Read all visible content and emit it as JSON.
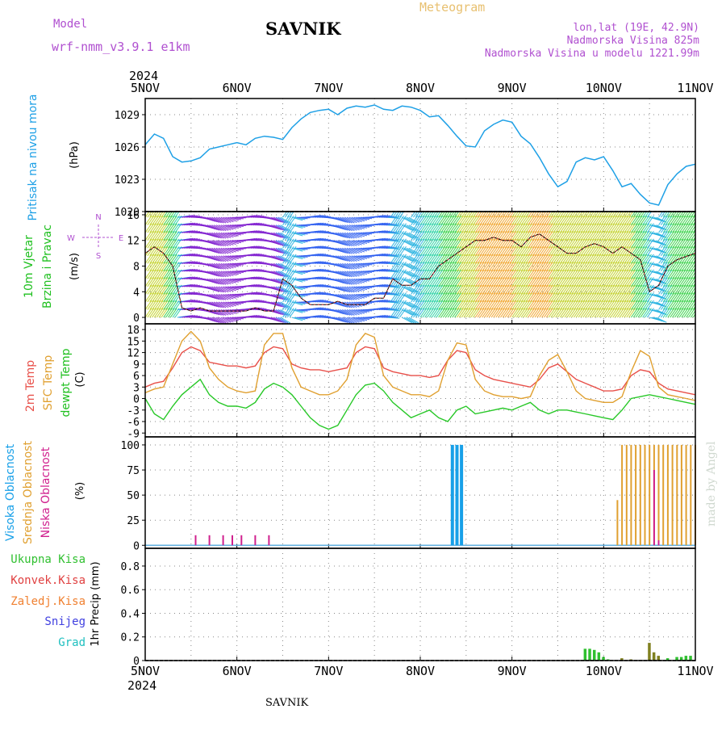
{
  "header": {
    "model_label": "Model",
    "model_name": "wrf-nmm_v3.9.1  e1km",
    "station": "SAVNIK",
    "product": "Meteogram",
    "lonlat": "lon,lat (19E, 42.9N)",
    "elevation": "Nadmorska Visina 825m",
    "model_elevation": "Nadmorska Visina u modelu 1221.99m",
    "year": "2024",
    "footer_station": "SAVNIK",
    "credit": "made by Angel"
  },
  "time_axis": {
    "labels": [
      "5NOV",
      "6NOV",
      "7NOV",
      "8NOV",
      "9NOV",
      "10NOV",
      "11NOV"
    ],
    "start_day": 5,
    "end_day": 11
  },
  "colors": {
    "pressure": "#1ea0e6",
    "temp2m": "#e8504a",
    "sfc": "#e0a030",
    "dew": "#28c828",
    "high_cloud": "#18a0e8",
    "mid_cloud": "#e0a030",
    "low_cloud": "#d0208e",
    "total_precip": "#30c030",
    "conv_precip": "#e04040",
    "frz_precip": "#f08030",
    "snow": "#4040e0",
    "hail": "#20c0c0"
  },
  "chart_data": [
    {
      "type": "line",
      "panel": "pressure",
      "ylabel_1": "Pritisak na nivou mora",
      "ylabel_2": "(hPa)",
      "yticks": [
        1020,
        1023,
        1026,
        1029
      ],
      "ylim": [
        1020,
        1030.5
      ],
      "grid": true,
      "series": [
        {
          "name": "Pritisak na nivou mora",
          "x": [
            5.0,
            5.1,
            5.2,
            5.3,
            5.4,
            5.5,
            5.6,
            5.7,
            5.8,
            5.9,
            6.0,
            6.1,
            6.2,
            6.3,
            6.4,
            6.5,
            6.6,
            6.7,
            6.8,
            6.9,
            7.0,
            7.1,
            7.2,
            7.3,
            7.4,
            7.5,
            7.6,
            7.7,
            7.8,
            7.9,
            8.0,
            8.1,
            8.2,
            8.3,
            8.4,
            8.5,
            8.6,
            8.7,
            8.8,
            8.9,
            9.0,
            9.1,
            9.2,
            9.3,
            9.4,
            9.5,
            9.6,
            9.7,
            9.8,
            9.9,
            10.0,
            10.1,
            10.2,
            10.3,
            10.4,
            10.5,
            10.6,
            10.7,
            10.8,
            10.9,
            11.0
          ],
          "values": [
            1026.2,
            1027.2,
            1026.8,
            1025.1,
            1024.6,
            1024.7,
            1025.0,
            1025.8,
            1026.0,
            1026.2,
            1026.4,
            1026.2,
            1026.8,
            1027.0,
            1026.9,
            1026.7,
            1027.8,
            1028.6,
            1029.2,
            1029.4,
            1029.5,
            1029.0,
            1029.6,
            1029.8,
            1029.7,
            1029.9,
            1029.5,
            1029.4,
            1029.8,
            1029.7,
            1029.4,
            1028.8,
            1028.9,
            1028.0,
            1027.0,
            1026.1,
            1026.0,
            1027.5,
            1028.1,
            1028.5,
            1028.3,
            1027.0,
            1026.3,
            1025.0,
            1023.5,
            1022.3,
            1022.8,
            1024.6,
            1025.0,
            1024.8,
            1025.1,
            1023.8,
            1022.3,
            1022.6,
            1021.6,
            1020.8,
            1020.6,
            1022.5,
            1023.5,
            1024.2,
            1024.4
          ]
        }
      ]
    },
    {
      "type": "line",
      "panel": "wind",
      "ylabel_1": "10m Vjetar",
      "ylabel_2": "Brzina i Pravac",
      "ylabel_3": "(m/s)",
      "compass": {
        "n": "N",
        "s": "S",
        "e": "E",
        "w": "W"
      },
      "yticks": [
        0,
        4,
        8,
        12,
        16
      ],
      "ylim": [
        -1,
        16.5
      ],
      "grid": true,
      "series": [
        {
          "name": "10m Vjetar",
          "x": [
            5.0,
            5.1,
            5.2,
            5.3,
            5.4,
            5.5,
            5.6,
            5.7,
            5.8,
            5.9,
            6.0,
            6.1,
            6.2,
            6.3,
            6.4,
            6.5,
            6.6,
            6.7,
            6.8,
            6.9,
            7.0,
            7.1,
            7.2,
            7.3,
            7.4,
            7.5,
            7.6,
            7.7,
            7.8,
            7.9,
            8.0,
            8.1,
            8.2,
            8.3,
            8.4,
            8.5,
            8.6,
            8.7,
            8.8,
            8.9,
            9.0,
            9.1,
            9.2,
            9.3,
            9.4,
            9.5,
            9.6,
            9.7,
            9.8,
            9.9,
            10.0,
            10.1,
            10.2,
            10.3,
            10.4,
            10.5,
            10.6,
            10.7,
            10.8,
            10.9,
            11.0
          ],
          "values": [
            10,
            11,
            10,
            8,
            1.5,
            1,
            1.5,
            1,
            1,
            1,
            1,
            1,
            1.5,
            1,
            1,
            6,
            5,
            3,
            2,
            2,
            2,
            2.5,
            2,
            2,
            2,
            3,
            3,
            6,
            5,
            5,
            6,
            6,
            8,
            9,
            10,
            11,
            12,
            12,
            12.5,
            12,
            12,
            11,
            12.5,
            13,
            12,
            11,
            10,
            10,
            11,
            11.5,
            11,
            10,
            11,
            10,
            9,
            4,
            5,
            8,
            9,
            9.5,
            10
          ]
        }
      ]
    },
    {
      "type": "line",
      "panel": "temperature",
      "ylabel_1": "2m Temp",
      "ylabel_2": "SFC Temp",
      "ylabel_3": "dewpt Temp",
      "ylabel_4": "(C)",
      "yticks": [
        -9,
        -6,
        -3,
        0,
        3,
        6,
        9,
        12,
        15,
        18
      ],
      "ylim": [
        -10,
        19.5
      ],
      "grid": true,
      "series": [
        {
          "name": "2m Temp",
          "x": [
            5.0,
            5.1,
            5.2,
            5.3,
            5.4,
            5.5,
            5.6,
            5.7,
            5.8,
            5.9,
            6.0,
            6.1,
            6.2,
            6.3,
            6.4,
            6.5,
            6.6,
            6.7,
            6.8,
            6.9,
            7.0,
            7.1,
            7.2,
            7.3,
            7.4,
            7.5,
            7.6,
            7.7,
            7.8,
            7.9,
            8.0,
            8.1,
            8.2,
            8.3,
            8.4,
            8.5,
            8.6,
            8.7,
            8.8,
            8.9,
            9.0,
            9.1,
            9.2,
            9.3,
            9.4,
            9.5,
            9.6,
            9.7,
            9.8,
            9.9,
            10.0,
            10.1,
            10.2,
            10.3,
            10.4,
            10.5,
            10.6,
            10.7,
            10.8,
            10.9,
            11.0
          ],
          "values": [
            3,
            4,
            4.5,
            8,
            12,
            13.5,
            12.5,
            9.5,
            9,
            8.5,
            8.5,
            8,
            8.5,
            12,
            13.5,
            13,
            9,
            8,
            7.5,
            7.5,
            7,
            7.5,
            8,
            12,
            13.5,
            13,
            8,
            7,
            6.5,
            6,
            6,
            5.5,
            6,
            10,
            12.5,
            12,
            7.5,
            6,
            5,
            4.5,
            4,
            3.5,
            3,
            5,
            8,
            9,
            7,
            5,
            4,
            3,
            2,
            2,
            2.5,
            6,
            7.5,
            7,
            4,
            2.5,
            2,
            1.5,
            1
          ]
        },
        {
          "name": "SFC Temp",
          "x": [
            5.0,
            5.1,
            5.2,
            5.3,
            5.4,
            5.5,
            5.6,
            5.7,
            5.8,
            5.9,
            6.0,
            6.1,
            6.2,
            6.3,
            6.4,
            6.5,
            6.6,
            6.7,
            6.8,
            6.9,
            7.0,
            7.1,
            7.2,
            7.3,
            7.4,
            7.5,
            7.6,
            7.7,
            7.8,
            7.9,
            8.0,
            8.1,
            8.2,
            8.3,
            8.4,
            8.5,
            8.6,
            8.7,
            8.8,
            8.9,
            9.0,
            9.1,
            9.2,
            9.3,
            9.4,
            9.5,
            9.6,
            9.7,
            9.8,
            9.9,
            10.0,
            10.1,
            10.2,
            10.3,
            10.4,
            10.5,
            10.6,
            10.7,
            10.8,
            10.9,
            11.0
          ],
          "values": [
            1.5,
            2.5,
            3,
            9,
            15,
            17.5,
            15,
            8,
            5,
            3,
            2,
            1.5,
            2,
            14,
            17,
            17,
            8,
            3,
            2,
            1,
            1,
            2,
            5,
            14,
            17,
            16,
            6,
            3,
            2,
            1,
            1,
            0.5,
            2,
            10,
            14.5,
            14,
            5,
            2,
            1,
            0.5,
            0.5,
            0,
            0.5,
            6,
            10,
            11.5,
            7,
            2,
            0,
            -0.5,
            -1,
            -1,
            0.5,
            7,
            12.5,
            11,
            3,
            1,
            0.5,
            0,
            -0.5
          ]
        },
        {
          "name": "dewpt Temp",
          "x": [
            5.0,
            5.1,
            5.2,
            5.3,
            5.4,
            5.5,
            5.6,
            5.7,
            5.8,
            5.9,
            6.0,
            6.1,
            6.2,
            6.3,
            6.4,
            6.5,
            6.6,
            6.7,
            6.8,
            6.9,
            7.0,
            7.1,
            7.2,
            7.3,
            7.4,
            7.5,
            7.6,
            7.7,
            7.8,
            7.9,
            8.0,
            8.1,
            8.2,
            8.3,
            8.4,
            8.5,
            8.6,
            8.7,
            8.8,
            8.9,
            9.0,
            9.1,
            9.2,
            9.3,
            9.4,
            9.5,
            9.6,
            9.7,
            9.8,
            9.9,
            10.0,
            10.1,
            10.2,
            10.3,
            10.4,
            10.5,
            10.6,
            10.7,
            10.8,
            10.9,
            11.0
          ],
          "values": [
            0,
            -4,
            -5.5,
            -2,
            1,
            3,
            5,
            1,
            -1,
            -2,
            -2,
            -2.5,
            -1,
            2.5,
            4,
            3,
            1,
            -2,
            -5,
            -7,
            -8,
            -7,
            -3,
            1,
            3.5,
            4,
            2,
            -1,
            -3,
            -5,
            -4,
            -3,
            -5,
            -6,
            -3,
            -2,
            -4,
            -3.5,
            -3,
            -2.5,
            -3,
            -2,
            -1,
            -3,
            -4,
            -3,
            -3,
            -3.5,
            -4,
            -4.5,
            -5,
            -5.5,
            -3,
            0,
            0.5,
            1,
            0.5,
            0,
            -0.5,
            -1,
            -1.5
          ]
        }
      ]
    },
    {
      "type": "bar",
      "panel": "clouds",
      "ylabel_1": "Visoka Oblacnost",
      "ylabel_2": "Srednja Oblacnost",
      "ylabel_3": "Niska Oblacnost",
      "ylabel_4": "(%)",
      "yticks": [
        0,
        25,
        50,
        75,
        100
      ],
      "ylim": [
        -3,
        108
      ],
      "grid": true,
      "series": [
        {
          "name": "Visoka Oblacnost",
          "x": [
            8.35,
            8.4,
            8.45
          ],
          "values": [
            100,
            100,
            100
          ]
        },
        {
          "name": "Srednja Oblacnost",
          "x": [
            10.15,
            10.2,
            10.25,
            10.3,
            10.35,
            10.4,
            10.45,
            10.5,
            10.55,
            10.6,
            10.65,
            10.7,
            10.75,
            10.8,
            10.85,
            10.9,
            10.95,
            11.0
          ],
          "values": [
            45,
            100,
            100,
            100,
            100,
            100,
            100,
            100,
            100,
            100,
            100,
            100,
            100,
            100,
            100,
            100,
            100,
            100
          ]
        },
        {
          "name": "Niska Oblacnost",
          "x": [
            5.55,
            5.7,
            5.85,
            5.95,
            6.05,
            6.2,
            6.35,
            10.55,
            10.6
          ],
          "values": [
            10,
            10,
            10,
            10,
            10,
            10,
            10,
            75,
            5
          ]
        }
      ]
    },
    {
      "type": "bar",
      "panel": "precip",
      "ylabel_1": "1hr Precip (mm)",
      "legend": [
        "Ukupna Kisa",
        "Konvek.Kisa",
        "Zaledj.Kisa",
        "Snijeg",
        "Grad"
      ],
      "yticks": [
        0,
        0.2,
        0.4,
        0.6,
        0.8
      ],
      "ytick_labels": [
        "0",
        "0.2",
        "0.4",
        "0.6",
        "0.8"
      ],
      "ylim": [
        0,
        0.95
      ],
      "grid": true,
      "series": [
        {
          "name": "Ukupna Kisa",
          "x": [
            9.8,
            9.85,
            9.9,
            9.95,
            10.0,
            10.05,
            10.55,
            10.6,
            10.7,
            10.8,
            10.85,
            10.9,
            10.95
          ],
          "values": [
            0.1,
            0.1,
            0.09,
            0.07,
            0.03,
            0.01,
            0.04,
            0.02,
            0.02,
            0.03,
            0.03,
            0.04,
            0.04
          ]
        },
        {
          "name": "Zaledj.Kisa",
          "x": [
            10.5,
            10.55,
            10.6,
            10.2,
            10.3
          ],
          "values": [
            0.15,
            0.07,
            0.04,
            0.02,
            0.01
          ]
        }
      ]
    }
  ]
}
